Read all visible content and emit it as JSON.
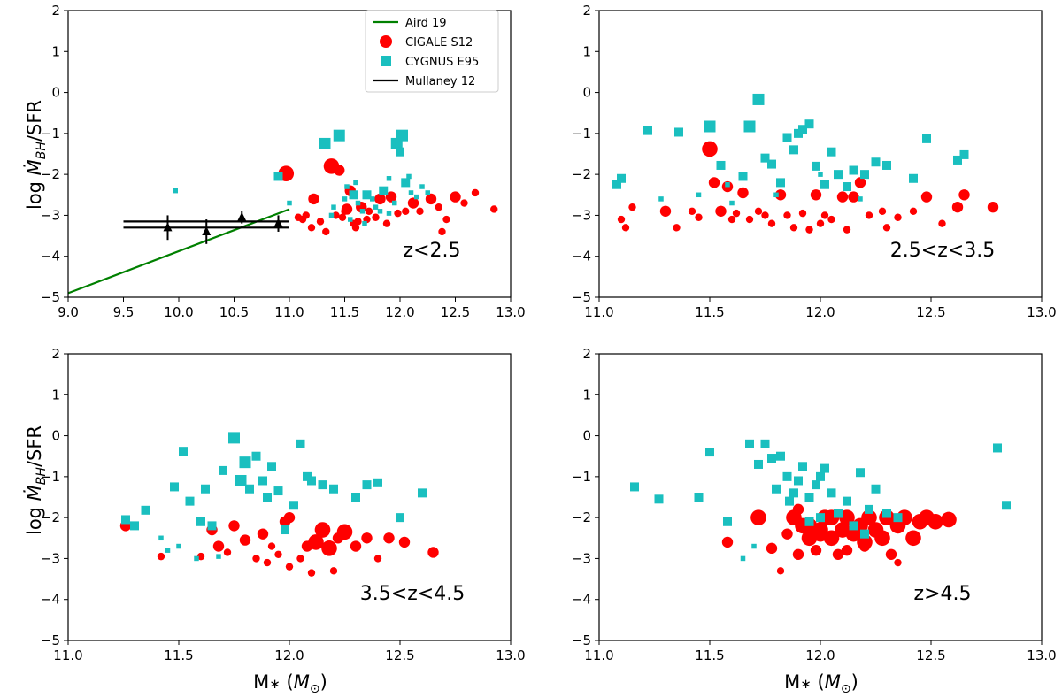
{
  "figure": {
    "ylabel_prefix": "log ",
    "ylabel_main": "Ṁ",
    "ylabel_sub": "BH",
    "ylabel_suffix": "/SFR",
    "xlabel_main": "M",
    "xlabel_star": "∗",
    "xlabel_open": " (",
    "xlabel_M": "M",
    "xlabel_sun": "⊙",
    "xlabel_close": ")"
  },
  "colors": {
    "cigale": "#ff0000",
    "cygnus": "#1abfbf",
    "aird": "#008000",
    "mullaney": "#000000"
  },
  "legend": [
    {
      "label": "Aird 19",
      "kind": "line",
      "color": "#008000"
    },
    {
      "label": "CIGALE S12",
      "kind": "circle",
      "color": "#ff0000"
    },
    {
      "label": "CYGNUS E95",
      "kind": "square",
      "color": "#1abfbf"
    },
    {
      "label": "Mullaney 12",
      "kind": "line",
      "color": "#000000"
    }
  ],
  "chart_data": [
    {
      "type": "scatter",
      "title": "",
      "annotation": "z<2.5",
      "xlim": [
        9.0,
        13.0
      ],
      "ylim": [
        -5,
        2
      ],
      "xticks": [
        "9.0",
        "9.5",
        "10.0",
        "10.5",
        "11.0",
        "11.5",
        "12.0",
        "12.5",
        "13.0"
      ],
      "yticks": [
        "−5",
        "−4",
        "−3",
        "−2",
        "−1",
        "0",
        "1",
        "2"
      ],
      "series": [
        {
          "name": "Aird 19",
          "kind": "line",
          "x": [
            9.0,
            11.0
          ],
          "y": [
            -4.9,
            -2.85
          ]
        },
        {
          "name": "Mullaney 12",
          "kind": "errorbar",
          "x": [
            9.9,
            10.25,
            10.57,
            10.9
          ],
          "y": [
            -3.3,
            -3.4,
            -3.05,
            -3.2
          ],
          "yerr": [
            0.3,
            0.3,
            0.15,
            0.2
          ],
          "hlines": [
            [
              9.5,
              11.0,
              -3.15
            ],
            [
              9.5,
              11.0,
              -3.3
            ]
          ]
        },
        {
          "name": "CIGALE S12",
          "kind": "circle",
          "x": [
            10.97,
            11.08,
            11.15,
            11.22,
            11.28,
            11.33,
            11.38,
            11.42,
            11.45,
            11.48,
            11.52,
            11.55,
            11.58,
            11.62,
            11.65,
            11.72,
            11.78,
            11.82,
            11.88,
            11.92,
            11.98,
            12.05,
            12.12,
            12.18,
            12.28,
            12.35,
            12.42,
            12.5,
            12.58,
            12.68,
            12.85,
            11.6,
            11.7,
            11.12,
            11.2,
            11.5,
            12.38
          ],
          "y": [
            -1.98,
            -3.05,
            -3.0,
            -2.6,
            -3.15,
            -3.4,
            -1.8,
            -3.0,
            -1.9,
            -3.05,
            -2.85,
            -2.4,
            -3.2,
            -3.15,
            -2.8,
            -2.9,
            -3.05,
            -2.6,
            -3.2,
            -2.55,
            -2.95,
            -2.9,
            -2.7,
            -2.9,
            -2.6,
            -2.8,
            -3.1,
            -2.55,
            -2.7,
            -2.45,
            -2.85,
            -3.3,
            -3.1,
            -3.1,
            -3.3,
            -2.9,
            -3.4
          ],
          "size": [
            3,
            1,
            1,
            2,
            1,
            1,
            3,
            1,
            2,
            1,
            2,
            2,
            1,
            1,
            2,
            1,
            1,
            2,
            1,
            2,
            1,
            1,
            2,
            1,
            2,
            1,
            1,
            2,
            1,
            1,
            1,
            1,
            1,
            1,
            1,
            1,
            1
          ]
        },
        {
          "name": "CYGNUS E95",
          "kind": "square",
          "x": [
            9.97,
            10.9,
            11.0,
            11.32,
            11.4,
            11.45,
            11.5,
            11.55,
            11.58,
            11.62,
            11.66,
            11.7,
            11.75,
            11.78,
            11.82,
            11.85,
            11.9,
            11.95,
            11.97,
            12.0,
            12.02,
            12.05,
            12.08,
            12.15,
            12.2,
            12.25,
            11.38,
            11.52,
            11.6,
            11.68,
            11.9,
            12.1
          ],
          "y": [
            -2.4,
            -2.05,
            -2.7,
            -1.25,
            -2.8,
            -1.05,
            -2.6,
            -3.1,
            -2.5,
            -2.7,
            -2.9,
            -2.5,
            -2.6,
            -2.8,
            -2.9,
            -2.4,
            -2.95,
            -2.7,
            -1.25,
            -1.45,
            -1.05,
            -2.2,
            -2.05,
            -2.55,
            -2.3,
            -2.45,
            -3.0,
            -2.3,
            -2.2,
            -3.2,
            -2.1,
            -2.45
          ],
          "size": [
            1,
            2,
            1,
            3,
            1,
            3,
            1,
            1,
            2,
            1,
            1,
            2,
            1,
            1,
            1,
            2,
            1,
            1,
            3,
            2,
            3,
            2,
            1,
            1,
            1,
            1,
            1,
            1,
            1,
            1,
            1,
            1
          ]
        }
      ]
    },
    {
      "type": "scatter",
      "title": "",
      "annotation": "2.5<z<3.5",
      "xlim": [
        11.0,
        13.0
      ],
      "ylim": [
        -5,
        2
      ],
      "xticks": [
        "11.0",
        "11.5",
        "12.0",
        "12.5",
        "13.0"
      ],
      "yticks": [
        "−5",
        "−4",
        "−3",
        "−2",
        "−1",
        "0",
        "1",
        "2"
      ],
      "series": [
        {
          "name": "CIGALE S12",
          "kind": "circle",
          "x": [
            11.1,
            11.12,
            11.15,
            11.3,
            11.35,
            11.42,
            11.5,
            11.52,
            11.55,
            11.58,
            11.62,
            11.65,
            11.68,
            11.72,
            11.78,
            11.82,
            11.85,
            11.88,
            11.92,
            11.95,
            11.98,
            12.02,
            12.05,
            12.1,
            12.12,
            12.15,
            12.18,
            12.22,
            12.28,
            12.35,
            12.42,
            12.48,
            12.55,
            12.62,
            12.65,
            12.78,
            11.45,
            11.6,
            11.75,
            12.0,
            12.3
          ],
          "y": [
            -3.1,
            -3.3,
            -2.8,
            -2.9,
            -3.3,
            -2.9,
            -1.38,
            -2.2,
            -2.9,
            -2.3,
            -2.95,
            -2.45,
            -3.1,
            -2.9,
            -3.2,
            -2.5,
            -3.0,
            -3.3,
            -2.95,
            -3.35,
            -2.5,
            -3.0,
            -3.1,
            -2.55,
            -3.35,
            -2.55,
            -2.2,
            -3.0,
            -2.9,
            -3.05,
            -2.9,
            -2.55,
            -3.2,
            -2.8,
            -2.5,
            -2.8,
            -3.05,
            -3.1,
            -3.0,
            -3.2,
            -3.3
          ],
          "size": [
            1,
            1,
            1,
            2,
            1,
            1,
            3,
            2,
            2,
            2,
            1,
            2,
            1,
            1,
            1,
            2,
            1,
            1,
            1,
            1,
            2,
            1,
            1,
            2,
            1,
            2,
            2,
            1,
            1,
            1,
            1,
            2,
            1,
            2,
            2,
            2,
            1,
            1,
            1,
            1,
            1
          ]
        },
        {
          "name": "CYGNUS E95",
          "kind": "square",
          "x": [
            11.08,
            11.1,
            11.22,
            11.28,
            11.36,
            11.45,
            11.5,
            11.55,
            11.58,
            11.65,
            11.68,
            11.72,
            11.75,
            11.78,
            11.82,
            11.85,
            11.88,
            11.9,
            11.92,
            11.95,
            11.98,
            12.02,
            12.05,
            12.08,
            12.12,
            12.15,
            12.2,
            12.25,
            12.3,
            12.42,
            12.48,
            12.62,
            12.65,
            11.8,
            12.0,
            11.6,
            12.18
          ],
          "y": [
            -2.25,
            -2.1,
            -0.93,
            -2.6,
            -0.97,
            -2.5,
            -0.83,
            -1.78,
            -2.25,
            -2.05,
            -0.83,
            -0.17,
            -1.6,
            -1.75,
            -2.2,
            -1.1,
            -1.4,
            -1.0,
            -0.9,
            -0.77,
            -1.8,
            -2.25,
            -1.45,
            -2.0,
            -2.3,
            -1.9,
            -2.0,
            -1.7,
            -1.78,
            -2.1,
            -1.13,
            -1.65,
            -1.52,
            -2.5,
            -2.0,
            -2.7,
            -2.6
          ],
          "size": [
            2,
            2,
            2,
            1,
            2,
            1,
            3,
            2,
            1,
            2,
            3,
            3,
            2,
            2,
            2,
            2,
            2,
            2,
            2,
            2,
            2,
            2,
            2,
            2,
            2,
            2,
            2,
            2,
            2,
            2,
            2,
            2,
            2,
            1,
            1,
            1,
            1
          ]
        }
      ]
    },
    {
      "type": "scatter",
      "title": "",
      "annotation": "3.5<z<4.5",
      "xlim": [
        11.0,
        13.0
      ],
      "ylim": [
        -5,
        2
      ],
      "xticks": [
        "11.0",
        "11.5",
        "12.0",
        "12.5",
        "13.0"
      ],
      "yticks": [
        "−5",
        "−4",
        "−3",
        "−2",
        "−1",
        "0",
        "1",
        "2"
      ],
      "series": [
        {
          "name": "CIGALE S12",
          "kind": "circle",
          "x": [
            11.26,
            11.42,
            11.65,
            11.68,
            11.72,
            11.75,
            11.8,
            11.85,
            11.88,
            11.92,
            11.95,
            11.98,
            12.0,
            12.05,
            12.08,
            12.1,
            12.12,
            12.15,
            12.18,
            12.2,
            12.22,
            12.25,
            12.3,
            12.35,
            12.4,
            12.45,
            12.52,
            12.65,
            11.6,
            11.9,
            12.0
          ],
          "y": [
            -2.2,
            -2.95,
            -2.3,
            -2.7,
            -2.85,
            -2.2,
            -2.55,
            -3.0,
            -2.4,
            -2.7,
            -2.9,
            -2.1,
            -2.0,
            -3.0,
            -2.7,
            -3.35,
            -2.6,
            -2.3,
            -2.75,
            -3.3,
            -2.5,
            -2.35,
            -2.7,
            -2.5,
            -3.0,
            -2.5,
            -2.6,
            -2.85,
            -2.95,
            -3.1,
            -3.2
          ],
          "size": [
            2,
            1,
            2,
            2,
            1,
            2,
            2,
            1,
            2,
            1,
            1,
            2,
            2,
            1,
            2,
            1,
            3,
            3,
            3,
            1,
            2,
            3,
            2,
            2,
            1,
            2,
            2,
            2,
            1,
            1,
            1
          ]
        },
        {
          "name": "CYGNUS E95",
          "kind": "square",
          "x": [
            11.26,
            11.3,
            11.35,
            11.42,
            11.48,
            11.52,
            11.55,
            11.6,
            11.62,
            11.65,
            11.7,
            11.75,
            11.78,
            11.8,
            11.82,
            11.85,
            11.88,
            11.9,
            11.92,
            11.95,
            11.98,
            12.02,
            12.05,
            12.1,
            12.15,
            12.2,
            12.3,
            12.35,
            12.4,
            12.5,
            12.6,
            11.45,
            11.5,
            11.58,
            11.68,
            12.08
          ],
          "y": [
            -2.05,
            -2.2,
            -1.82,
            -2.5,
            -1.25,
            -0.38,
            -1.6,
            -2.1,
            -1.3,
            -2.2,
            -0.85,
            -0.05,
            -1.1,
            -0.65,
            -1.3,
            -0.5,
            -1.1,
            -1.5,
            -0.75,
            -1.35,
            -2.3,
            -1.7,
            -0.2,
            -1.1,
            -1.2,
            -1.3,
            -1.5,
            -1.2,
            -1.15,
            -2.0,
            -1.4,
            -2.8,
            -2.7,
            -3.0,
            -2.95,
            -1.0
          ],
          "size": [
            2,
            2,
            2,
            1,
            2,
            2,
            2,
            2,
            2,
            2,
            2,
            3,
            3,
            3,
            2,
            2,
            2,
            2,
            2,
            2,
            2,
            2,
            2,
            2,
            2,
            2,
            2,
            2,
            2,
            2,
            2,
            1,
            1,
            1,
            1,
            2
          ]
        }
      ]
    },
    {
      "type": "scatter",
      "title": "",
      "annotation": "z>4.5",
      "xlim": [
        11.0,
        13.0
      ],
      "ylim": [
        -5,
        2
      ],
      "xticks": [
        "11.0",
        "11.5",
        "12.0",
        "12.5",
        "13.0"
      ],
      "yticks": [
        "−5",
        "−4",
        "−3",
        "−2",
        "−1",
        "0",
        "1",
        "2"
      ],
      "series": [
        {
          "name": "CIGALE S12",
          "kind": "circle",
          "x": [
            11.58,
            11.72,
            11.78,
            11.82,
            11.85,
            11.88,
            11.9,
            11.92,
            11.95,
            11.98,
            12.0,
            12.02,
            12.05,
            12.08,
            12.1,
            12.12,
            12.15,
            12.18,
            12.2,
            12.22,
            12.25,
            12.28,
            12.3,
            12.32,
            12.35,
            12.38,
            12.42,
            12.45,
            12.48,
            12.52,
            12.58,
            11.9,
            11.95,
            12.0,
            12.05,
            12.12,
            12.2,
            12.35
          ],
          "y": [
            -2.6,
            -2.0,
            -2.75,
            -3.3,
            -2.4,
            -2.0,
            -2.9,
            -2.2,
            -2.5,
            -2.8,
            -2.3,
            -2.0,
            -2.5,
            -2.9,
            -2.3,
            -2.0,
            -2.4,
            -2.2,
            -2.6,
            -2.0,
            -2.3,
            -2.5,
            -2.0,
            -2.9,
            -2.2,
            -2.0,
            -2.5,
            -2.1,
            -2.0,
            -2.1,
            -2.05,
            -1.8,
            -2.2,
            -2.4,
            -2.0,
            -2.8,
            -2.7,
            -3.1
          ],
          "size": [
            2,
            3,
            2,
            1,
            2,
            3,
            2,
            3,
            3,
            2,
            3,
            3,
            3,
            2,
            3,
            3,
            3,
            3,
            3,
            3,
            3,
            3,
            3,
            2,
            3,
            3,
            3,
            3,
            3,
            3,
            3,
            2,
            3,
            3,
            3,
            2,
            2,
            1
          ]
        },
        {
          "name": "CYGNUS E95",
          "kind": "square",
          "x": [
            11.16,
            11.27,
            11.45,
            11.5,
            11.58,
            11.68,
            11.72,
            11.75,
            11.78,
            11.8,
            11.82,
            11.85,
            11.88,
            11.9,
            11.92,
            11.95,
            11.98,
            12.0,
            12.02,
            12.05,
            12.08,
            12.12,
            12.15,
            12.18,
            12.22,
            12.25,
            12.3,
            12.35,
            12.8,
            12.84,
            11.7,
            11.86,
            11.95,
            12.2,
            11.65,
            12.0
          ],
          "y": [
            -1.25,
            -1.55,
            -1.5,
            -0.4,
            -2.1,
            -0.2,
            -0.7,
            -0.2,
            -0.55,
            -1.3,
            -0.5,
            -1.0,
            -1.4,
            -1.1,
            -0.75,
            -1.5,
            -1.2,
            -2.0,
            -0.8,
            -1.4,
            -1.9,
            -1.6,
            -2.2,
            -0.9,
            -1.8,
            -1.3,
            -1.9,
            -2.0,
            -0.3,
            -1.7,
            -2.7,
            -1.6,
            -2.1,
            -2.4,
            -3.0,
            -1.0
          ],
          "size": [
            2,
            2,
            2,
            2,
            2,
            2,
            2,
            2,
            2,
            2,
            2,
            2,
            2,
            2,
            2,
            2,
            2,
            2,
            2,
            2,
            2,
            2,
            2,
            2,
            2,
            2,
            2,
            2,
            2,
            2,
            1,
            2,
            2,
            2,
            1,
            2
          ]
        }
      ]
    }
  ]
}
